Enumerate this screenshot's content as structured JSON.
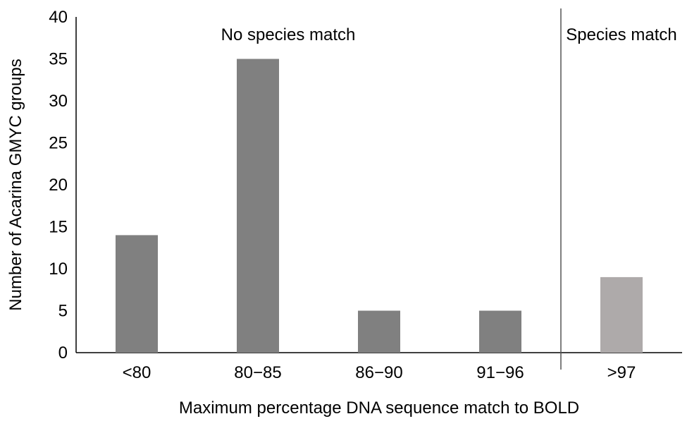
{
  "chart_data": {
    "type": "bar",
    "title": "",
    "xlabel": "Maximum percentage DNA sequence match to BOLD",
    "ylabel": "Number of Acarina GMYC groups",
    "categories": [
      "<80",
      "80−85",
      "86−90",
      "91−96",
      ">97"
    ],
    "values": [
      14,
      35,
      5,
      5,
      9
    ],
    "ylim": [
      0,
      40
    ],
    "yticks": [
      0,
      5,
      10,
      15,
      20,
      25,
      30,
      35,
      40
    ],
    "grid": false,
    "legend": "none",
    "bar_colors": [
      "#808080",
      "#808080",
      "#808080",
      "#808080",
      "#aeaaaa"
    ],
    "annotations": [
      {
        "text": "No species match",
        "region": "left"
      },
      {
        "text": "Species match",
        "region": "right"
      }
    ],
    "divider_between": [
      ">91−96",
      ">97"
    ]
  }
}
